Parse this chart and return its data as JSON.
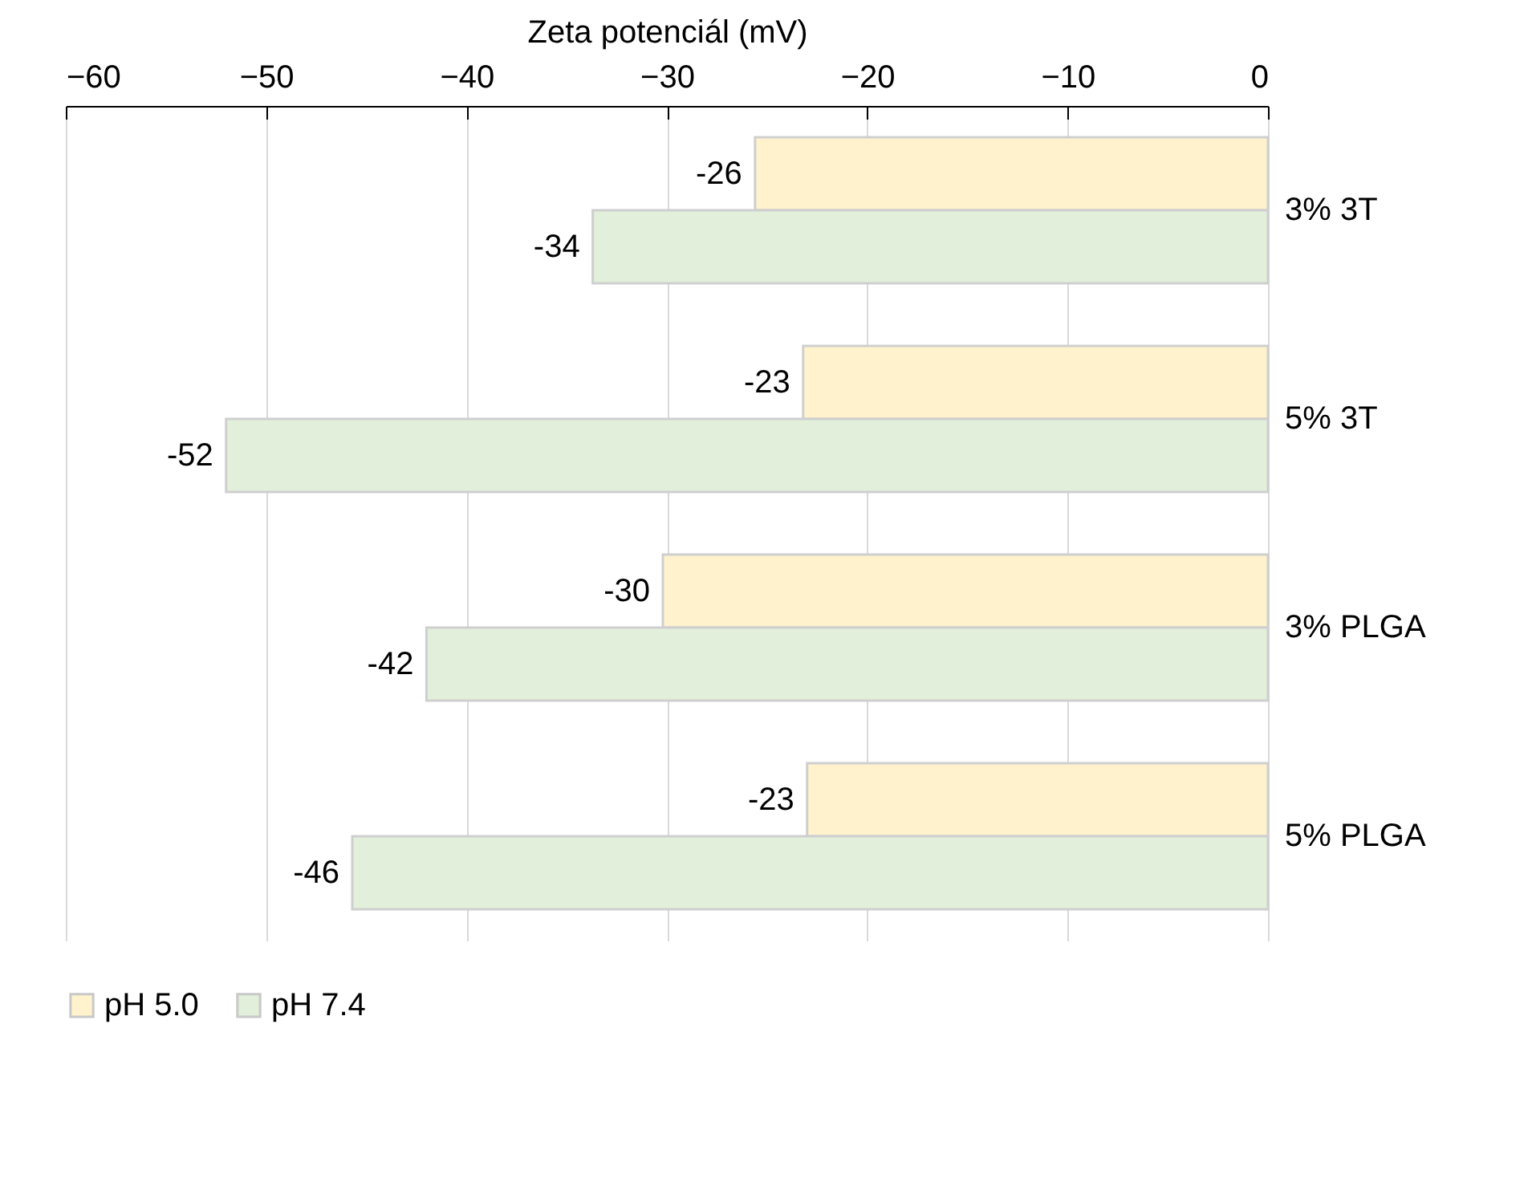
{
  "chart_data": {
    "type": "bar",
    "orientation": "horizontal",
    "xlabel": "Zeta potenciál (mV)",
    "categories": [
      "3% 3T",
      "5% 3T",
      "3% PLGA",
      "5% PLGA"
    ],
    "series": [
      {
        "name": "pH 5.0",
        "color": "#fff2cc",
        "values": [
          -25.6,
          -23.2,
          -30.2,
          -23.0
        ],
        "value_labels": [
          "-26",
          "-23",
          "-30",
          "-23"
        ]
      },
      {
        "name": "pH 7.4",
        "color": "#e2efda",
        "values": [
          -33.7,
          -52.0,
          -42.0,
          -45.7
        ],
        "value_labels": [
          "-34",
          "-52",
          "-42",
          "-46"
        ]
      }
    ],
    "xlim": [
      -60,
      0
    ],
    "xticks": [
      -60,
      -50,
      -40,
      -30,
      -20,
      -10,
      0
    ],
    "grid": "x",
    "legend": "bottom"
  }
}
